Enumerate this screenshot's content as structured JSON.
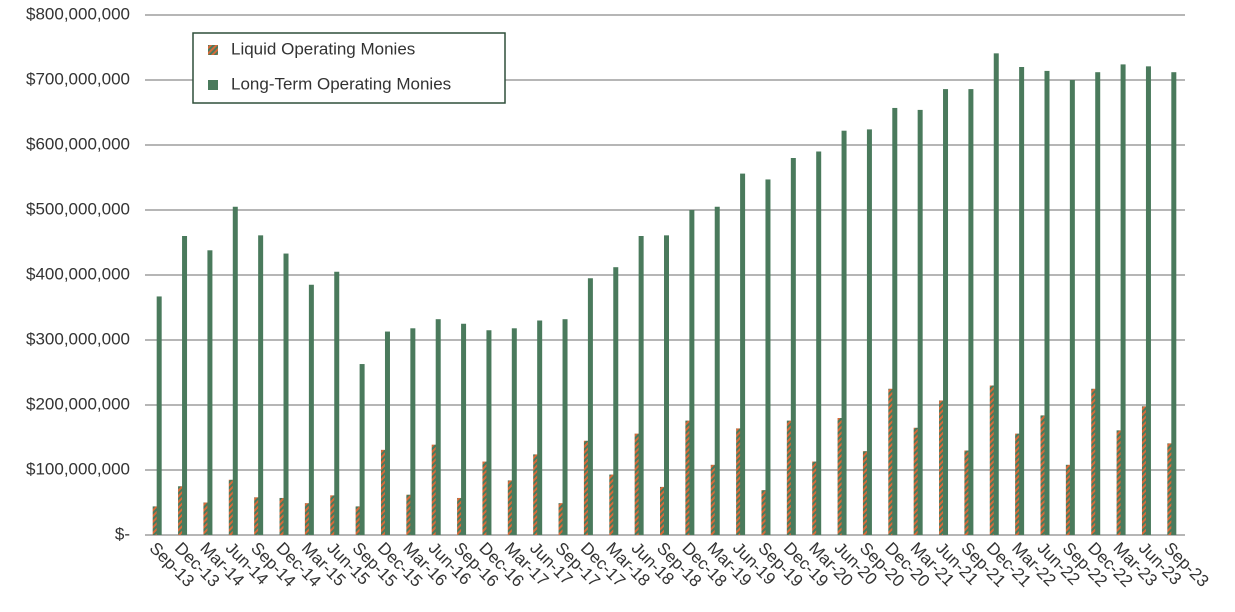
{
  "chart_data": {
    "type": "bar",
    "categories": [
      "Sep-13",
      "Dec-13",
      "Mar-14",
      "Jun-14",
      "Sep-14",
      "Dec-14",
      "Mar-15",
      "Jun-15",
      "Sep-15",
      "Dec-15",
      "Mar-16",
      "Jun-16",
      "Sep-16",
      "Dec-16",
      "Mar-17",
      "Jun-17",
      "Sep-17",
      "Dec-17",
      "Mar-18",
      "Jun-18",
      "Sep-18",
      "Dec-18",
      "Mar-19",
      "Jun-19",
      "Sep-19",
      "Dec-19",
      "Mar-20",
      "Jun-20",
      "Sep-20",
      "Dec-20",
      "Mar-21",
      "Jun-21",
      "Sep-21",
      "Dec-21",
      "Mar-22",
      "Jun-22",
      "Sep-22",
      "Dec-22",
      "Mar-23",
      "Jun-23",
      "Sep-23"
    ],
    "series": [
      {
        "name": "Liquid Operating Monies",
        "color": "#d86a3a",
        "pattern": "hatched",
        "values": [
          44000000,
          75000000,
          50000000,
          85000000,
          58000000,
          57000000,
          49000000,
          61000000,
          44000000,
          131000000,
          62000000,
          139000000,
          57000000,
          113000000,
          84000000,
          124000000,
          49000000,
          145000000,
          93000000,
          156000000,
          74000000,
          176000000,
          108000000,
          164000000,
          69000000,
          176000000,
          113000000,
          180000000,
          129000000,
          225000000,
          165000000,
          207000000,
          130000000,
          230000000,
          156000000,
          184000000,
          108000000,
          225000000,
          161000000,
          198000000,
          141000000
        ]
      },
      {
        "name": "Long-Term Operating Monies",
        "color": "#4a7a5c",
        "values": [
          367000000,
          460000000,
          438000000,
          505000000,
          461000000,
          433000000,
          385000000,
          405000000,
          263000000,
          313000000,
          318000000,
          332000000,
          325000000,
          315000000,
          318000000,
          330000000,
          332000000,
          395000000,
          412000000,
          460000000,
          461000000,
          500000000,
          505000000,
          556000000,
          547000000,
          580000000,
          590000000,
          622000000,
          624000000,
          657000000,
          654000000,
          686000000,
          686000000,
          741000000,
          720000000,
          714000000,
          700000000,
          712000000,
          724000000,
          721000000,
          712000000
        ]
      }
    ],
    "ylim": [
      0,
      800000000
    ],
    "yticks": [
      {
        "value": 0,
        "label": "$-"
      },
      {
        "value": 100000000,
        "label": "$100,000,000"
      },
      {
        "value": 200000000,
        "label": "$200,000,000"
      },
      {
        "value": 300000000,
        "label": "$300,000,000"
      },
      {
        "value": 400000000,
        "label": "$400,000,000"
      },
      {
        "value": 500000000,
        "label": "$500,000,000"
      },
      {
        "value": 600000000,
        "label": "$600,000,000"
      },
      {
        "value": 700000000,
        "label": "$700,000,000"
      },
      {
        "value": 800000000,
        "label": "$800,000,000"
      }
    ],
    "grid": true,
    "legend": "top-left"
  }
}
